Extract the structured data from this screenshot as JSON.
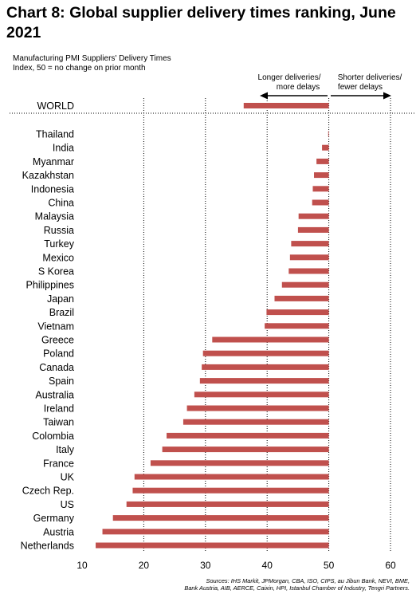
{
  "title": "Chart 8: Global supplier delivery times ranking, June 2021",
  "subtitle_line1": "Manufacturing PMI Suppliers' Delivery Times",
  "subtitle_line2": "Index, 50 = no change on prior month",
  "annotation_left_line1": "Longer deliveries/",
  "annotation_left_line2": "more delays",
  "annotation_right_line1": "Shorter deliveries/",
  "annotation_right_line2": "fewer delays",
  "sources_line1": "Sources: IHS Markit, JPMorgan, CBA, ISO, CIPS, au Jibun Bank, NEVI, BME,",
  "sources_line2": "Bank Austria, AIB, AERCE, Caixin, HPI, Istanbul Chamber of Industry, Tengri Partners.",
  "colors": {
    "bar": "#c0504d",
    "grid": "#000000"
  },
  "chart_data": {
    "type": "bar",
    "orientation": "horizontal",
    "baseline": 50,
    "xlim": [
      10,
      60
    ],
    "xticks": [
      10,
      20,
      30,
      40,
      50,
      60
    ],
    "grid": "vertical dotted",
    "world": {
      "label": "WORLD",
      "value": 36.2
    },
    "categories": [
      "Thailand",
      "India",
      "Myanmar",
      "Kazakhstan",
      "Indonesia",
      "China",
      "Malaysia",
      "Russia",
      "Turkey",
      "Mexico",
      "S Korea",
      "Philippines",
      "Japan",
      "Brazil",
      "Vietnam",
      "Greece",
      "Poland",
      "Canada",
      "Spain",
      "Australia",
      "Ireland",
      "Taiwan",
      "Colombia",
      "Italy",
      "France",
      "UK",
      "Czech Rep.",
      "US",
      "Germany",
      "Austria",
      "Netherlands"
    ],
    "values": [
      49.9,
      48.9,
      48.0,
      47.6,
      47.4,
      47.3,
      45.1,
      45.0,
      43.9,
      43.7,
      43.5,
      42.4,
      41.2,
      39.9,
      39.6,
      31.1,
      29.6,
      29.4,
      29.1,
      28.2,
      27.0,
      26.4,
      23.7,
      23.0,
      21.1,
      18.5,
      18.2,
      17.2,
      15.0,
      13.3,
      12.2
    ]
  }
}
